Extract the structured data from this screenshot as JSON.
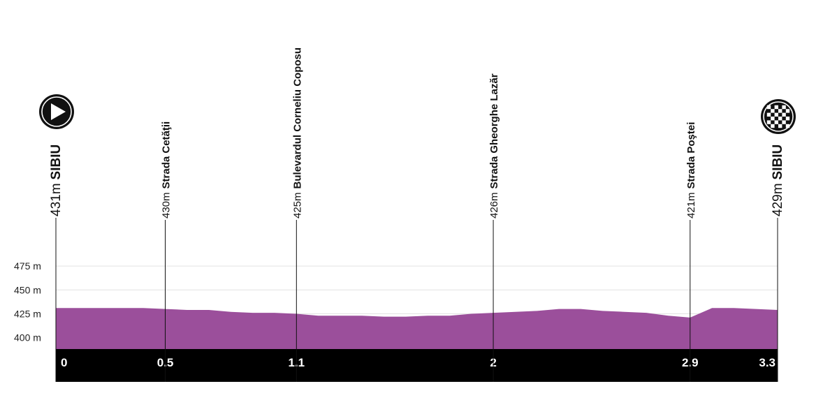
{
  "chart_data": {
    "type": "area",
    "title": "",
    "xlabel": "",
    "ylabel": "",
    "xlim": [
      0,
      3.3
    ],
    "ylim": [
      388,
      500
    ],
    "y_ticks": [
      {
        "value": 475,
        "label": "475 m"
      },
      {
        "value": 450,
        "label": "450 m"
      },
      {
        "value": 425,
        "label": "425 m"
      },
      {
        "value": 400,
        "label": "400 m"
      }
    ],
    "x_ticks": [
      {
        "value": 0,
        "label": "0"
      },
      {
        "value": 0.5,
        "label": "0.5"
      },
      {
        "value": 1.1,
        "label": "1.1"
      },
      {
        "value": 2,
        "label": "2"
      },
      {
        "value": 2.9,
        "label": "2.9"
      },
      {
        "value": 3.3,
        "label": "3.3"
      }
    ],
    "fill_color": "#9b4f9b",
    "axis_band_color": "#000000",
    "grid": true,
    "profile": {
      "x": [
        0,
        0.2,
        0.4,
        0.5,
        0.6,
        0.7,
        0.8,
        0.9,
        1.0,
        1.1,
        1.2,
        1.3,
        1.4,
        1.5,
        1.6,
        1.7,
        1.8,
        1.9,
        2.0,
        2.1,
        2.2,
        2.3,
        2.4,
        2.5,
        2.6,
        2.7,
        2.8,
        2.9,
        3.0,
        3.1,
        3.2,
        3.3
      ],
      "y": [
        431,
        431,
        431,
        430,
        429,
        429,
        427,
        426,
        426,
        425,
        423,
        423,
        423,
        422,
        422,
        423,
        423,
        425,
        426,
        427,
        428,
        430,
        430,
        428,
        427,
        426,
        423,
        421,
        431,
        431,
        430,
        429
      ]
    },
    "waypoints": [
      {
        "km": 0,
        "altitude": "431m",
        "name": "SIBIU",
        "marker": "start"
      },
      {
        "km": 0.5,
        "altitude": "430m",
        "name": "Strada Cetăţii",
        "marker": ""
      },
      {
        "km": 1.1,
        "altitude": "425m",
        "name": "Bulevardul Corneliu Coposu",
        "marker": ""
      },
      {
        "km": 2,
        "altitude": "426m",
        "name": "Strada Gheorghe Lazăr",
        "marker": ""
      },
      {
        "km": 2.9,
        "altitude": "421m",
        "name": "Strada Poştei",
        "marker": ""
      },
      {
        "km": 3.3,
        "altitude": "429m",
        "name": "SIBIU",
        "marker": "finish"
      }
    ]
  }
}
